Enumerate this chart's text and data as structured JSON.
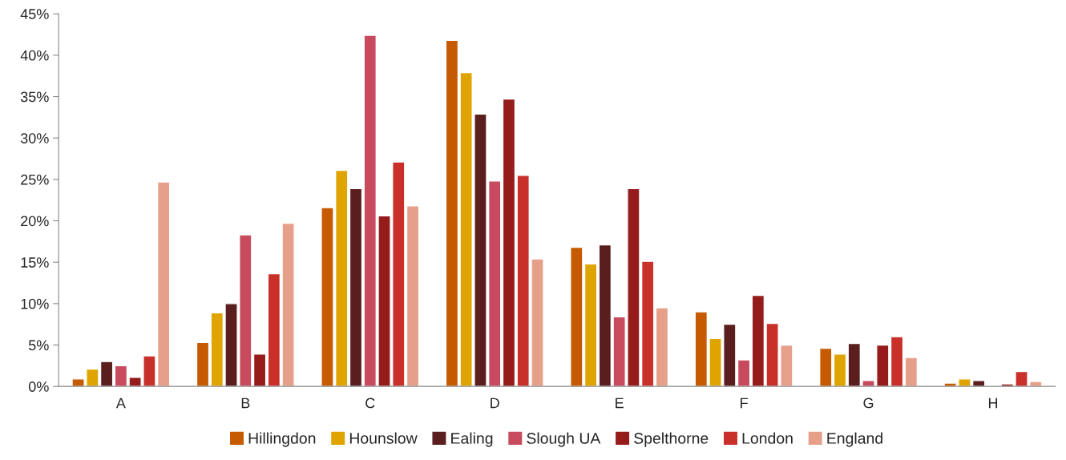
{
  "chart_data": {
    "type": "bar",
    "categories": [
      "A",
      "B",
      "C",
      "D",
      "E",
      "F",
      "G",
      "H"
    ],
    "series": [
      {
        "name": "Hillingdon",
        "color": "#c55a00",
        "values": [
          0.9,
          5.3,
          21.6,
          41.8,
          16.8,
          9.0,
          4.6,
          0.4
        ]
      },
      {
        "name": "Hounslow",
        "color": "#e0a400",
        "values": [
          2.1,
          8.9,
          26.1,
          37.9,
          14.8,
          5.8,
          3.9,
          0.9
        ]
      },
      {
        "name": "Ealing",
        "color": "#5a1e1e",
        "values": [
          3.0,
          10.0,
          23.9,
          32.9,
          17.1,
          7.5,
          5.2,
          0.7
        ]
      },
      {
        "name": "Slough UA",
        "color": "#c84a5e",
        "values": [
          2.5,
          18.3,
          42.4,
          24.8,
          8.4,
          3.2,
          0.7,
          null
        ]
      },
      {
        "name": "Spelthorne",
        "color": "#961c1c",
        "values": [
          1.1,
          3.9,
          20.6,
          34.7,
          23.9,
          11.0,
          5.0,
          0.3
        ]
      },
      {
        "name": "London",
        "color": "#c9302a",
        "values": [
          3.7,
          13.6,
          27.1,
          25.5,
          15.1,
          7.6,
          6.0,
          1.8
        ]
      },
      {
        "name": "England",
        "color": "#e6a08a",
        "values": [
          24.7,
          19.7,
          21.8,
          15.4,
          9.5,
          5.0,
          3.5,
          0.6
        ]
      }
    ],
    "ylim": [
      0,
      45
    ],
    "yticks": [
      {
        "value": 0,
        "label": "0%"
      },
      {
        "value": 5,
        "label": "5%"
      },
      {
        "value": 10,
        "label": "10%"
      },
      {
        "value": 15,
        "label": "15%"
      },
      {
        "value": 20,
        "label": "20%"
      },
      {
        "value": 25,
        "label": "25%"
      },
      {
        "value": 30,
        "label": "30%"
      },
      {
        "value": 35,
        "label": "35%"
      },
      {
        "value": 40,
        "label": "40%"
      },
      {
        "value": 45,
        "label": "45%"
      }
    ],
    "grid": false,
    "legend": "bottom"
  }
}
